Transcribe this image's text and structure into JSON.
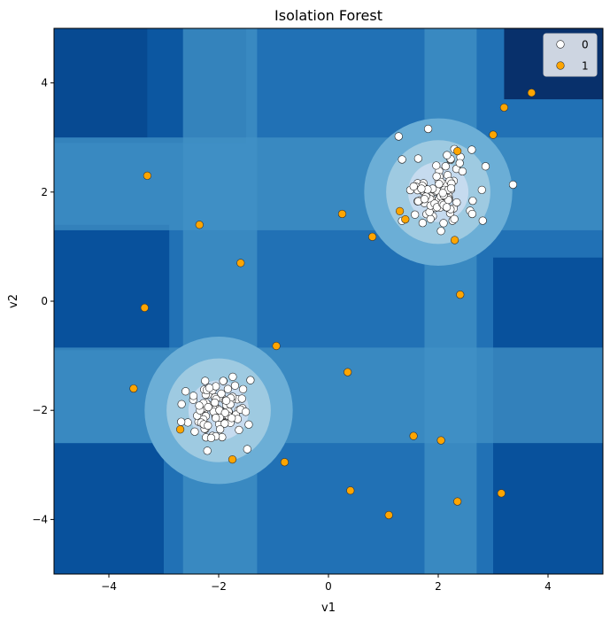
{
  "chart_data": {
    "type": "scatter",
    "title": "Isolation Forest",
    "xlabel": "v1",
    "ylabel": "v2",
    "xlim": [
      -5,
      5
    ],
    "ylim": [
      -5,
      5
    ],
    "xticks": [
      -4,
      -2,
      0,
      2,
      4
    ],
    "yticks": [
      -4,
      -2,
      0,
      2,
      4
    ],
    "tick_labels_x": [
      "−4",
      "−2",
      "0",
      "2",
      "4"
    ],
    "tick_labels_y": [
      "−4",
      "−2",
      "0",
      "2",
      "4"
    ],
    "grid": false,
    "legend_position": "top-right",
    "background": {
      "kind": "filled-contour",
      "colors": [
        "#08306b",
        "#08519c",
        "#2171b5",
        "#4292c6",
        "#6baed6",
        "#9ecae1",
        "#c6dbef"
      ],
      "clusters": [
        [
          2.0,
          2.0
        ],
        [
          -2.0,
          -2.0
        ]
      ]
    },
    "series": [
      {
        "name": "0",
        "color": "#ffffff",
        "edge": "#222222",
        "clusters": [
          {
            "center": [
              2.0,
              2.0
            ],
            "count": 100,
            "spread": 0.35
          },
          {
            "center": [
              -2.0,
              -2.0
            ],
            "count": 100,
            "spread": 0.3
          }
        ]
      },
      {
        "name": "1",
        "color": "#ffa500",
        "edge": "#333333",
        "x": [
          -3.3,
          -2.35,
          -1.6,
          -3.35,
          -0.95,
          -3.55,
          -2.7,
          -1.75,
          -0.8,
          0.25,
          0.8,
          1.3,
          1.4,
          2.35,
          2.3,
          3.0,
          3.2,
          3.7,
          2.4,
          0.35,
          1.55,
          2.05,
          0.4,
          1.1,
          2.35,
          3.15
        ],
        "y": [
          2.3,
          1.4,
          0.7,
          -0.12,
          -0.82,
          -1.6,
          -2.35,
          -2.9,
          -2.95,
          1.6,
          1.18,
          1.65,
          1.5,
          2.75,
          1.12,
          3.05,
          3.55,
          3.82,
          0.12,
          -1.3,
          -2.47,
          -2.55,
          -3.47,
          -3.92,
          -3.67,
          -3.52
        ]
      }
    ]
  }
}
